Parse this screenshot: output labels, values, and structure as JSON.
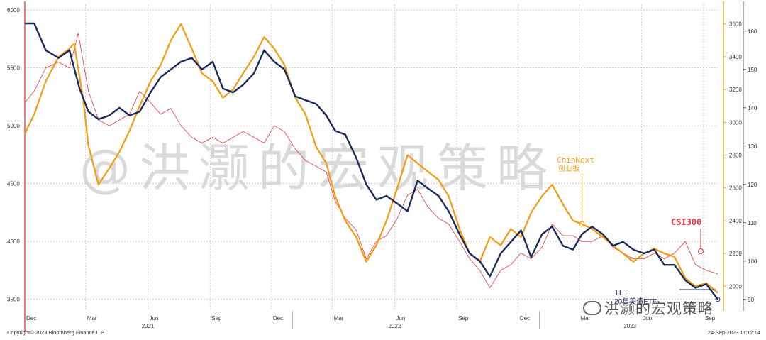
{
  "footer": {
    "copyright": "Copyright© 2023 Bloomberg Finance L.P.",
    "timestamp": "24-Sep-2023 11:12:14"
  },
  "watermark": {
    "main": "@洪灏的宏观策略",
    "wechat": "洪灏的宏观策略"
  },
  "colors": {
    "tlt": "#1b2a5c",
    "chinext": "#f59b12",
    "csi300": "#e8363a",
    "axis_left": "#e8363a",
    "axis_right": "#f59b12",
    "grid": "#b8b8b8"
  },
  "chart_data": {
    "type": "line",
    "x_axis": {
      "month_labels": [
        "Dec",
        "Mar",
        "Jun",
        "Sep",
        "Dec",
        "Mar",
        "Jun",
        "Sep",
        "Dec",
        "Mar",
        "Jun",
        "Sep"
      ],
      "year_labels": [
        "2021",
        "2022",
        "2023"
      ],
      "range": [
        "2020-12-01",
        "2023-09-22"
      ]
    },
    "left_axis": {
      "series": "CSI300",
      "ticks": [
        3500,
        4000,
        4500,
        5000,
        5500,
        6000
      ],
      "range": [
        3400,
        6050
      ]
    },
    "right_axis_1": {
      "series": "ChinNext",
      "ticks": [
        2000,
        2200,
        2400,
        2600,
        2800,
        3000,
        3200,
        3400,
        3600
      ],
      "range": [
        1850,
        3720
      ]
    },
    "right_axis_2": {
      "series": "TLT",
      "ticks": [
        90,
        100,
        110,
        120,
        130,
        140,
        150,
        160
      ],
      "range": [
        87,
        167
      ]
    },
    "annotations": [
      {
        "text": "ChinNext",
        "subtext": "创业板",
        "color": "#f59b12",
        "date": "2023-03-01",
        "series": "chinext"
      },
      {
        "text": "CSI300",
        "color": "#e8363a",
        "date": "2023-08-01",
        "series": "csi300"
      },
      {
        "text": "TLT",
        "subtext": "20年美债ETF",
        "color": "#1b2a5c",
        "date": "2023-09-22",
        "series": "tlt"
      }
    ],
    "series": [
      {
        "name": "TLT",
        "axis": "tlt",
        "color": "#1b2a5c",
        "points": [
          [
            "2020-12-01",
            162
          ],
          [
            "2020-12-15",
            162
          ],
          [
            "2021-01-01",
            155
          ],
          [
            "2021-01-20",
            153
          ],
          [
            "2021-02-05",
            155
          ],
          [
            "2021-02-20",
            145
          ],
          [
            "2021-03-05",
            139
          ],
          [
            "2021-03-20",
            137
          ],
          [
            "2021-04-05",
            138
          ],
          [
            "2021-04-20",
            140
          ],
          [
            "2021-05-05",
            138
          ],
          [
            "2021-05-20",
            139
          ],
          [
            "2021-06-05",
            144
          ],
          [
            "2021-06-20",
            148
          ],
          [
            "2021-07-05",
            150
          ],
          [
            "2021-07-20",
            152
          ],
          [
            "2021-08-05",
            153
          ],
          [
            "2021-08-20",
            150
          ],
          [
            "2021-09-05",
            152
          ],
          [
            "2021-09-20",
            145
          ],
          [
            "2021-10-05",
            144
          ],
          [
            "2021-10-20",
            146
          ],
          [
            "2021-11-05",
            149
          ],
          [
            "2021-11-20",
            155
          ],
          [
            "2021-12-05",
            152
          ],
          [
            "2021-12-20",
            150
          ],
          [
            "2022-01-05",
            143
          ],
          [
            "2022-01-20",
            142
          ],
          [
            "2022-02-05",
            141
          ],
          [
            "2022-02-20",
            138
          ],
          [
            "2022-03-05",
            134
          ],
          [
            "2022-03-20",
            133
          ],
          [
            "2022-04-05",
            127
          ],
          [
            "2022-04-20",
            120
          ],
          [
            "2022-05-05",
            116
          ],
          [
            "2022-05-20",
            117
          ],
          [
            "2022-06-05",
            115
          ],
          [
            "2022-06-20",
            113
          ],
          [
            "2022-07-05",
            121
          ],
          [
            "2022-07-20",
            119
          ],
          [
            "2022-08-05",
            117
          ],
          [
            "2022-08-20",
            113
          ],
          [
            "2022-09-05",
            107
          ],
          [
            "2022-09-20",
            102
          ],
          [
            "2022-10-05",
            100
          ],
          [
            "2022-10-20",
            96
          ],
          [
            "2022-11-05",
            102
          ],
          [
            "2022-11-20",
            105
          ],
          [
            "2022-12-05",
            108
          ],
          [
            "2022-12-20",
            101
          ],
          [
            "2023-01-05",
            107
          ],
          [
            "2023-01-20",
            109
          ],
          [
            "2023-02-05",
            104
          ],
          [
            "2023-02-20",
            103
          ],
          [
            "2023-03-05",
            107
          ],
          [
            "2023-03-20",
            109
          ],
          [
            "2023-04-05",
            107
          ],
          [
            "2023-04-20",
            104
          ],
          [
            "2023-05-05",
            105
          ],
          [
            "2023-05-20",
            103
          ],
          [
            "2023-06-05",
            102
          ],
          [
            "2023-06-20",
            103
          ],
          [
            "2023-07-05",
            99
          ],
          [
            "2023-07-20",
            99
          ],
          [
            "2023-08-05",
            95
          ],
          [
            "2023-08-20",
            93
          ],
          [
            "2023-09-05",
            94
          ],
          [
            "2023-09-22",
            90
          ]
        ]
      },
      {
        "name": "ChinNext",
        "axis": "chinext",
        "color": "#f59b12",
        "points": [
          [
            "2020-12-01",
            2930
          ],
          [
            "2020-12-15",
            3050
          ],
          [
            "2021-01-01",
            3250
          ],
          [
            "2021-01-20",
            3400
          ],
          [
            "2021-02-05",
            3450
          ],
          [
            "2021-02-12",
            3480
          ],
          [
            "2021-02-25",
            3150
          ],
          [
            "2021-03-05",
            2860
          ],
          [
            "2021-03-20",
            2620
          ],
          [
            "2021-04-05",
            2720
          ],
          [
            "2021-04-20",
            2820
          ],
          [
            "2021-05-05",
            2950
          ],
          [
            "2021-05-20",
            3100
          ],
          [
            "2021-06-05",
            3250
          ],
          [
            "2021-06-20",
            3350
          ],
          [
            "2021-07-05",
            3500
          ],
          [
            "2021-07-20",
            3600
          ],
          [
            "2021-08-05",
            3450
          ],
          [
            "2021-08-20",
            3300
          ],
          [
            "2021-09-05",
            3250
          ],
          [
            "2021-09-20",
            3150
          ],
          [
            "2021-10-05",
            3200
          ],
          [
            "2021-10-20",
            3300
          ],
          [
            "2021-11-05",
            3400
          ],
          [
            "2021-11-20",
            3520
          ],
          [
            "2021-12-05",
            3450
          ],
          [
            "2021-12-20",
            3350
          ],
          [
            "2022-01-05",
            3150
          ],
          [
            "2022-01-20",
            3050
          ],
          [
            "2022-02-05",
            2850
          ],
          [
            "2022-02-20",
            2750
          ],
          [
            "2022-03-05",
            2550
          ],
          [
            "2022-03-20",
            2400
          ],
          [
            "2022-04-05",
            2300
          ],
          [
            "2022-04-20",
            2150
          ],
          [
            "2022-05-05",
            2250
          ],
          [
            "2022-05-20",
            2400
          ],
          [
            "2022-06-05",
            2600
          ],
          [
            "2022-06-20",
            2800
          ],
          [
            "2022-07-05",
            2750
          ],
          [
            "2022-07-20",
            2700
          ],
          [
            "2022-08-05",
            2650
          ],
          [
            "2022-08-20",
            2550
          ],
          [
            "2022-09-05",
            2350
          ],
          [
            "2022-09-20",
            2200
          ],
          [
            "2022-10-05",
            2150
          ],
          [
            "2022-10-20",
            2300
          ],
          [
            "2022-11-05",
            2250
          ],
          [
            "2022-11-20",
            2350
          ],
          [
            "2022-12-05",
            2300
          ],
          [
            "2022-12-20",
            2450
          ],
          [
            "2023-01-05",
            2550
          ],
          [
            "2023-01-20",
            2620
          ],
          [
            "2023-02-05",
            2500
          ],
          [
            "2023-02-20",
            2400
          ],
          [
            "2023-03-05",
            2380
          ],
          [
            "2023-03-20",
            2350
          ],
          [
            "2023-04-05",
            2300
          ],
          [
            "2023-04-20",
            2250
          ],
          [
            "2023-05-05",
            2200
          ],
          [
            "2023-05-20",
            2150
          ],
          [
            "2023-06-05",
            2200
          ],
          [
            "2023-06-20",
            2230
          ],
          [
            "2023-07-05",
            2200
          ],
          [
            "2023-07-20",
            2180
          ],
          [
            "2023-08-05",
            2050
          ],
          [
            "2023-08-20",
            2000
          ],
          [
            "2023-09-05",
            2020
          ],
          [
            "2023-09-22",
            1960
          ]
        ]
      },
      {
        "name": "CSI300",
        "axis": "csi300",
        "color": "#e8363a",
        "points": [
          [
            "2020-12-01",
            5200
          ],
          [
            "2020-12-15",
            5300
          ],
          [
            "2021-01-01",
            5500
          ],
          [
            "2021-01-20",
            5550
          ],
          [
            "2021-02-05",
            5500
          ],
          [
            "2021-02-18",
            5800
          ],
          [
            "2021-03-05",
            5300
          ],
          [
            "2021-03-20",
            5050
          ],
          [
            "2021-04-05",
            5000
          ],
          [
            "2021-04-20",
            5050
          ],
          [
            "2021-05-05",
            5100
          ],
          [
            "2021-05-20",
            5300
          ],
          [
            "2021-06-05",
            5200
          ],
          [
            "2021-06-20",
            5100
          ],
          [
            "2021-07-05",
            5150
          ],
          [
            "2021-07-20",
            5000
          ],
          [
            "2021-08-05",
            4900
          ],
          [
            "2021-08-20",
            4850
          ],
          [
            "2021-09-05",
            4900
          ],
          [
            "2021-09-20",
            4850
          ],
          [
            "2021-10-05",
            4900
          ],
          [
            "2021-10-20",
            4950
          ],
          [
            "2021-11-05",
            4900
          ],
          [
            "2021-11-20",
            4850
          ],
          [
            "2021-12-05",
            5000
          ],
          [
            "2021-12-20",
            4950
          ],
          [
            "2022-01-05",
            4800
          ],
          [
            "2022-01-20",
            4700
          ],
          [
            "2022-02-05",
            4650
          ],
          [
            "2022-02-20",
            4600
          ],
          [
            "2022-03-05",
            4350
          ],
          [
            "2022-03-20",
            4200
          ],
          [
            "2022-04-05",
            4100
          ],
          [
            "2022-04-20",
            3850
          ],
          [
            "2022-05-05",
            4000
          ],
          [
            "2022-05-20",
            4050
          ],
          [
            "2022-06-05",
            4200
          ],
          [
            "2022-06-20",
            4400
          ],
          [
            "2022-07-05",
            4450
          ],
          [
            "2022-07-20",
            4300
          ],
          [
            "2022-08-05",
            4200
          ],
          [
            "2022-08-20",
            4150
          ],
          [
            "2022-09-05",
            4000
          ],
          [
            "2022-09-20",
            3850
          ],
          [
            "2022-10-05",
            3750
          ],
          [
            "2022-10-20",
            3600
          ],
          [
            "2022-11-05",
            3750
          ],
          [
            "2022-11-20",
            3800
          ],
          [
            "2022-12-05",
            3900
          ],
          [
            "2022-12-20",
            3850
          ],
          [
            "2023-01-05",
            3950
          ],
          [
            "2023-01-20",
            4150
          ],
          [
            "2023-02-05",
            4050
          ],
          [
            "2023-02-20",
            4050
          ],
          [
            "2023-03-05",
            4000
          ],
          [
            "2023-03-20",
            4000
          ],
          [
            "2023-04-05",
            4050
          ],
          [
            "2023-04-20",
            3950
          ],
          [
            "2023-05-05",
            3900
          ],
          [
            "2023-05-20",
            3850
          ],
          [
            "2023-06-05",
            3850
          ],
          [
            "2023-06-20",
            3900
          ],
          [
            "2023-07-05",
            3850
          ],
          [
            "2023-07-20",
            3900
          ],
          [
            "2023-08-05",
            4000
          ],
          [
            "2023-08-20",
            3800
          ],
          [
            "2023-09-05",
            3750
          ],
          [
            "2023-09-22",
            3720
          ]
        ]
      }
    ]
  }
}
